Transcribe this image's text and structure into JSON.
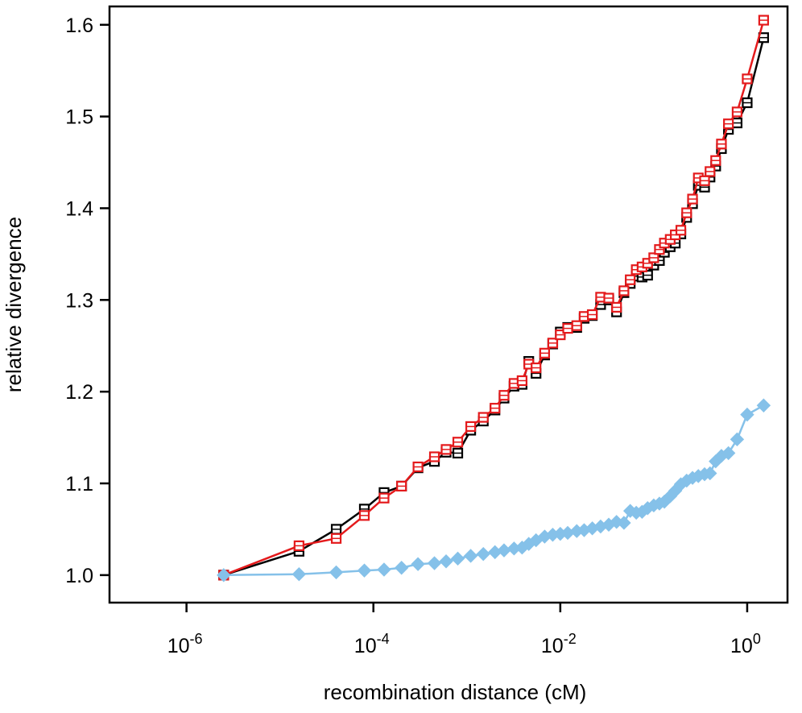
{
  "chart_data": {
    "type": "line",
    "xlabel": "recombination distance (cM)",
    "ylabel": "relative divergence",
    "x_scale": "log10",
    "xlim": [
      1.5e-07,
      2.7
    ],
    "ylim": [
      0.97,
      1.62
    ],
    "x_ticks": [
      {
        "value": 1e-06,
        "base": "10",
        "exp": "-6"
      },
      {
        "value": 0.0001,
        "base": "10",
        "exp": "-4"
      },
      {
        "value": 0.01,
        "base": "10",
        "exp": "-2"
      },
      {
        "value": 1,
        "base": "10",
        "exp": "0"
      }
    ],
    "y_ticks": [
      {
        "value": 1.0,
        "label": "1.0"
      },
      {
        "value": 1.1,
        "label": "1.1"
      },
      {
        "value": 1.2,
        "label": "1.2"
      },
      {
        "value": 1.3,
        "label": "1.3"
      },
      {
        "value": 1.4,
        "label": "1.4"
      },
      {
        "value": 1.5,
        "label": "1.5"
      },
      {
        "value": 1.6,
        "label": "1.6"
      }
    ],
    "grid": false,
    "series": [
      {
        "color": "#000000",
        "marker": "open-square",
        "points": [
          [
            2.5e-06,
            1.0
          ],
          [
            1.6e-05,
            1.026
          ],
          [
            4e-05,
            1.05
          ],
          [
            8e-05,
            1.072
          ],
          [
            0.00013,
            1.09
          ],
          [
            0.0002,
            1.097
          ],
          [
            0.0003,
            1.117
          ],
          [
            0.00045,
            1.124
          ],
          [
            0.0006,
            1.134
          ],
          [
            0.0008,
            1.133
          ],
          [
            0.0011,
            1.158
          ],
          [
            0.0015,
            1.168
          ],
          [
            0.002,
            1.18
          ],
          [
            0.0025,
            1.193
          ],
          [
            0.0032,
            1.206
          ],
          [
            0.0039,
            1.208
          ],
          [
            0.0046,
            1.233
          ],
          [
            0.0055,
            1.22
          ],
          [
            0.0068,
            1.24
          ],
          [
            0.0083,
            1.252
          ],
          [
            0.01,
            1.265
          ],
          [
            0.012,
            1.27
          ],
          [
            0.015,
            1.27
          ],
          [
            0.018,
            1.28
          ],
          [
            0.022,
            1.283
          ],
          [
            0.027,
            1.295
          ],
          [
            0.033,
            1.3
          ],
          [
            0.04,
            1.287
          ],
          [
            0.048,
            1.308
          ],
          [
            0.056,
            1.318
          ],
          [
            0.065,
            1.326
          ],
          [
            0.075,
            1.325
          ],
          [
            0.086,
            1.327
          ],
          [
            0.1,
            1.338
          ],
          [
            0.115,
            1.343
          ],
          [
            0.13,
            1.352
          ],
          [
            0.15,
            1.358
          ],
          [
            0.17,
            1.362
          ],
          [
            0.195,
            1.372
          ],
          [
            0.225,
            1.39
          ],
          [
            0.26,
            1.405
          ],
          [
            0.3,
            1.425
          ],
          [
            0.35,
            1.423
          ],
          [
            0.4,
            1.434
          ],
          [
            0.46,
            1.446
          ],
          [
            0.53,
            1.465
          ],
          [
            0.63,
            1.486
          ],
          [
            0.78,
            1.493
          ],
          [
            1.0,
            1.515
          ],
          [
            1.5,
            1.586
          ]
        ]
      },
      {
        "color": "#e41a1c",
        "marker": "open-square",
        "points": [
          [
            2.5e-06,
            1.0
          ],
          [
            1.6e-05,
            1.032
          ],
          [
            4e-05,
            1.04
          ],
          [
            8e-05,
            1.065
          ],
          [
            0.00013,
            1.084
          ],
          [
            0.0002,
            1.097
          ],
          [
            0.0003,
            1.118
          ],
          [
            0.00045,
            1.129
          ],
          [
            0.0006,
            1.137
          ],
          [
            0.0008,
            1.145
          ],
          [
            0.0011,
            1.162
          ],
          [
            0.0015,
            1.172
          ],
          [
            0.002,
            1.182
          ],
          [
            0.0025,
            1.196
          ],
          [
            0.0032,
            1.209
          ],
          [
            0.0039,
            1.212
          ],
          [
            0.0046,
            1.23
          ],
          [
            0.0055,
            1.226
          ],
          [
            0.0068,
            1.242
          ],
          [
            0.0083,
            1.253
          ],
          [
            0.01,
            1.262
          ],
          [
            0.012,
            1.269
          ],
          [
            0.015,
            1.272
          ],
          [
            0.018,
            1.282
          ],
          [
            0.022,
            1.284
          ],
          [
            0.027,
            1.303
          ],
          [
            0.033,
            1.302
          ],
          [
            0.04,
            1.292
          ],
          [
            0.048,
            1.31
          ],
          [
            0.056,
            1.322
          ],
          [
            0.065,
            1.333
          ],
          [
            0.075,
            1.336
          ],
          [
            0.086,
            1.34
          ],
          [
            0.1,
            1.346
          ],
          [
            0.115,
            1.355
          ],
          [
            0.13,
            1.362
          ],
          [
            0.15,
            1.366
          ],
          [
            0.17,
            1.371
          ],
          [
            0.195,
            1.376
          ],
          [
            0.225,
            1.395
          ],
          [
            0.26,
            1.41
          ],
          [
            0.3,
            1.433
          ],
          [
            0.35,
            1.43
          ],
          [
            0.4,
            1.44
          ],
          [
            0.46,
            1.452
          ],
          [
            0.53,
            1.47
          ],
          [
            0.63,
            1.492
          ],
          [
            0.78,
            1.505
          ],
          [
            1.0,
            1.541
          ],
          [
            1.5,
            1.605
          ]
        ]
      },
      {
        "color": "#85c1e9",
        "marker": "filled-diamond",
        "points": [
          [
            2.5e-06,
            1.0
          ],
          [
            1.6e-05,
            1.001
          ],
          [
            4e-05,
            1.003
          ],
          [
            8e-05,
            1.005
          ],
          [
            0.00013,
            1.006
          ],
          [
            0.0002,
            1.008
          ],
          [
            0.0003,
            1.012
          ],
          [
            0.00045,
            1.013
          ],
          [
            0.0006,
            1.015
          ],
          [
            0.0008,
            1.018
          ],
          [
            0.0011,
            1.021
          ],
          [
            0.0015,
            1.023
          ],
          [
            0.002,
            1.025
          ],
          [
            0.0025,
            1.027
          ],
          [
            0.0032,
            1.029
          ],
          [
            0.0039,
            1.03
          ],
          [
            0.0046,
            1.034
          ],
          [
            0.0055,
            1.038
          ],
          [
            0.0068,
            1.042
          ],
          [
            0.0083,
            1.044
          ],
          [
            0.01,
            1.045
          ],
          [
            0.012,
            1.046
          ],
          [
            0.015,
            1.048
          ],
          [
            0.018,
            1.049
          ],
          [
            0.022,
            1.051
          ],
          [
            0.027,
            1.053
          ],
          [
            0.033,
            1.055
          ],
          [
            0.04,
            1.058
          ],
          [
            0.048,
            1.057
          ],
          [
            0.056,
            1.07
          ],
          [
            0.065,
            1.068
          ],
          [
            0.075,
            1.069
          ],
          [
            0.086,
            1.073
          ],
          [
            0.1,
            1.076
          ],
          [
            0.115,
            1.078
          ],
          [
            0.13,
            1.08
          ],
          [
            0.15,
            1.086
          ],
          [
            0.17,
            1.092
          ],
          [
            0.195,
            1.099
          ],
          [
            0.225,
            1.103
          ],
          [
            0.26,
            1.106
          ],
          [
            0.3,
            1.108
          ],
          [
            0.35,
            1.11
          ],
          [
            0.4,
            1.111
          ],
          [
            0.46,
            1.124
          ],
          [
            0.53,
            1.13
          ],
          [
            0.63,
            1.133
          ],
          [
            0.78,
            1.148
          ],
          [
            1.0,
            1.175
          ],
          [
            1.5,
            1.185
          ]
        ]
      }
    ]
  }
}
